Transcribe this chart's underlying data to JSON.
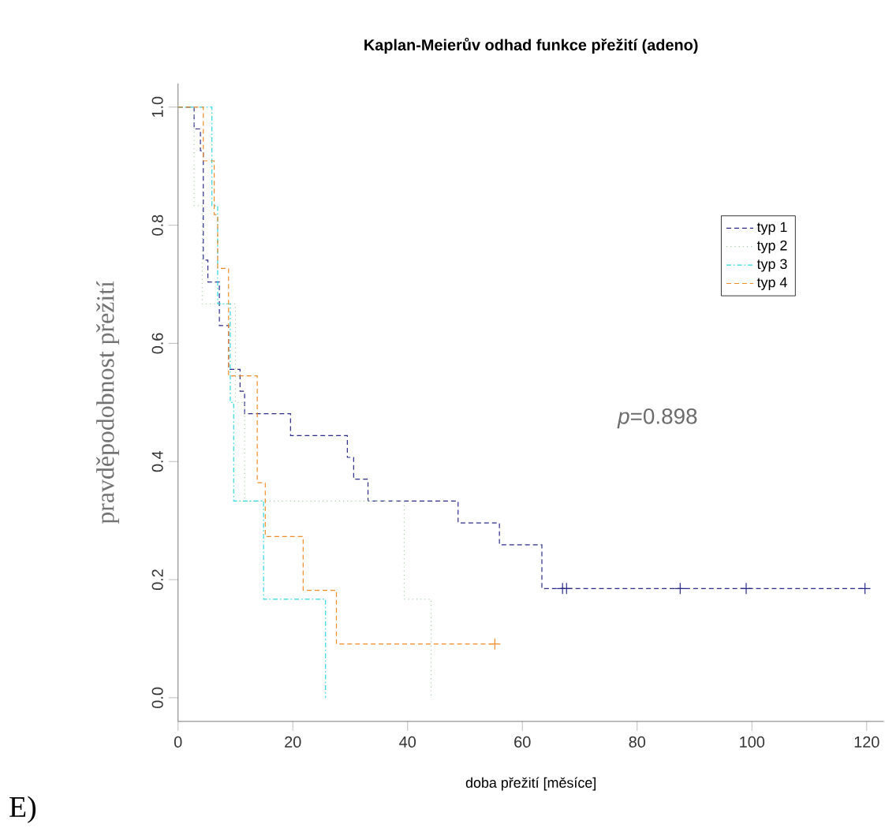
{
  "chart_data": {
    "type": "step",
    "title": "Kaplan-Meierův odhad funkce přežití (adeno)",
    "xlabel": "doba přežití [měsíce]",
    "ylabel": "pravděpodobnost přežití",
    "annotations": [
      "*p*=0.898",
      "E)"
    ],
    "xlim": [
      0,
      123
    ],
    "ylim": [
      -0.04,
      1.04
    ],
    "xticks": [
      0,
      20,
      40,
      60,
      80,
      100,
      120
    ],
    "yticks": [
      {
        "value": 0,
        "label": "0.0"
      },
      {
        "value": 0.2,
        "label": "0.2"
      },
      {
        "value": 0.4,
        "label": "0.4"
      },
      {
        "value": 0.6,
        "label": "0.6"
      },
      {
        "value": 0.8,
        "label": "0.8"
      },
      {
        "value": 1,
        "label": "1.0"
      }
    ],
    "grid": false,
    "legend": "top right",
    "series": [
      {
        "name": "typ 1",
        "color": "#2b2b8c",
        "line_style": "dashed",
        "x": [
          0,
          2.8,
          3.9,
          4.4,
          5.2,
          7.2,
          8.8,
          10.8,
          11.6,
          19.6,
          29.5,
          30.6,
          33.1,
          48.8,
          56,
          63.4,
          120
        ],
        "values": [
          1,
          0.963,
          0.926,
          0.741,
          0.704,
          0.63,
          0.556,
          0.519,
          0.481,
          0.444,
          0.407,
          0.37,
          0.333,
          0.296,
          0.259,
          0.185,
          0.185
        ]
      },
      {
        "name": "typ 2",
        "color": "#a8d0a8",
        "line_style": "dotted",
        "x": [
          0,
          2.8,
          4.2,
          10,
          11.6,
          39.4,
          44.1
        ],
        "values": [
          1,
          0.833,
          0.667,
          0.5,
          0.333,
          0.167,
          0
        ]
      },
      {
        "name": "typ 3",
        "color": "#30d8e0",
        "line_style": "dashdot",
        "x": [
          0,
          5.9,
          6.9,
          9.1,
          9.7,
          14.9,
          25.7
        ],
        "values": [
          1,
          0.833,
          0.667,
          0.5,
          0.333,
          0.167,
          0
        ]
      },
      {
        "name": "typ 4",
        "color": "#f08c28",
        "line_style": "dashed",
        "x": [
          0,
          4.4,
          6.3,
          6.9,
          8.8,
          13.8,
          15.2,
          21.8,
          27.6,
          55.2
        ],
        "values": [
          1,
          0.909,
          0.818,
          0.727,
          0.545,
          0.364,
          0.273,
          0.182,
          0.091,
          0.091
        ]
      },
      {
        "type": "scatter",
        "marker": "cross",
        "color": "#2b2b8c",
        "x": [
          67,
          67.7,
          87.5,
          99,
          119.7
        ],
        "values": [
          0.185,
          0.185,
          0.185,
          0.185,
          0.185
        ]
      },
      {
        "type": "scatter",
        "marker": "cross",
        "color": "#f08c28",
        "x": [
          55.2
        ],
        "values": [
          0.091
        ]
      }
    ]
  }
}
